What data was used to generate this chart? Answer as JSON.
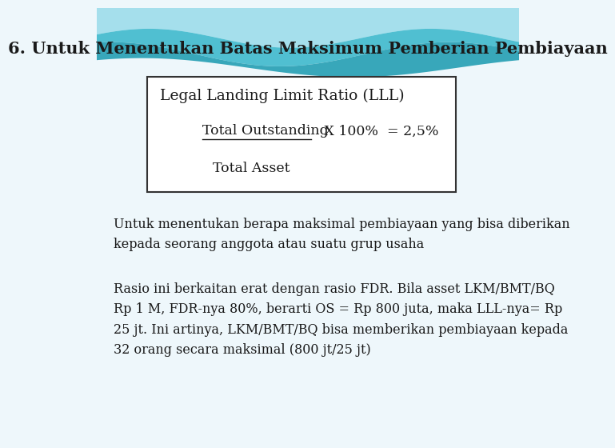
{
  "title": "6. Untuk Menentukan Batas Maksimum Pemberian Pembiayaan",
  "title_fontsize": 15,
  "title_color": "#1a1a1a",
  "box_label": "Legal Landing Limit Ratio (LLL)",
  "box_numerator": "Total Outstanding",
  "box_formula": "   X 100%  = 2,5%",
  "box_denominator": "Total Asset",
  "para1": "Untuk menentukan berapa maksimal pembiayaan yang bisa diberikan\nkepada seorang anggota atau suatu grup usaha",
  "para2": "Rasio ini berkaitan erat dengan rasio FDR. Bila asset LKM/BMT/BQ\nRp 1 M, FDR-nya 80%, berarti OS = Rp 800 juta, maka LLL-nya= Rp\n25 jt. Ini artinya, LKM/BMT/BQ bisa memberikan pembiayaan kepada\n32 orang secara maksimal (800 jt/25 jt)",
  "bg_color": "#eef7fb",
  "box_bg": "#ffffff",
  "box_border": "#333333",
  "text_color": "#1a1a1a",
  "font_size_body": 11.5,
  "font_size_box_title": 13.5,
  "font_size_box_content": 12.5
}
